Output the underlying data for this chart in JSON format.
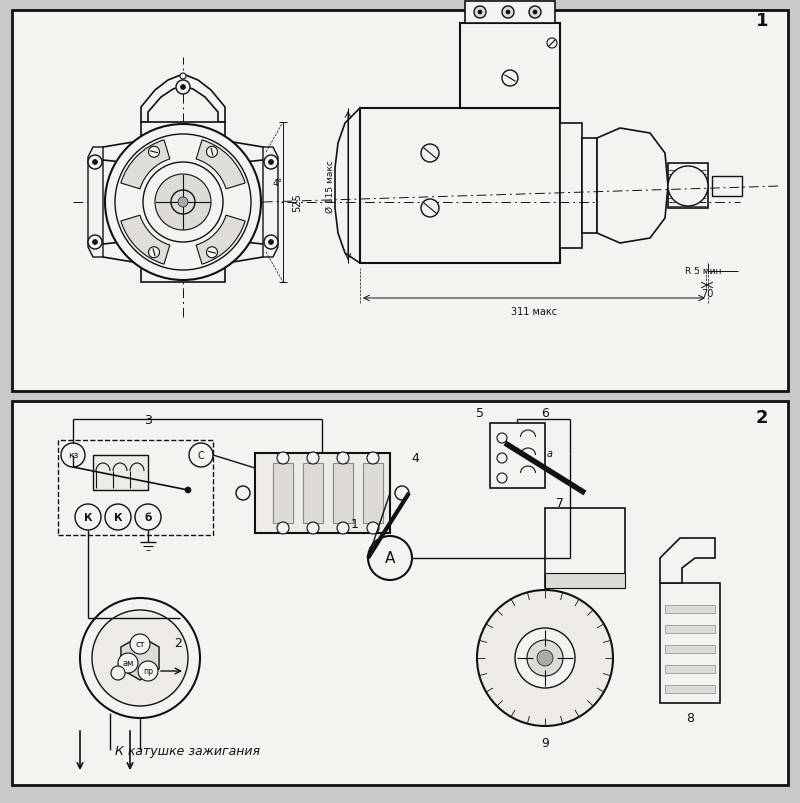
{
  "bg_color": "#c8c8c8",
  "panel_bg": "#f5f3f0",
  "lc": "#111111",
  "label1": "1",
  "label2": "2",
  "bottom_text": "К катушке зажигания",
  "dim_311": "311 макс",
  "dim_70": "70",
  "dim_r5": "R 5 мин",
  "dim_d115": "Ø 115 макс",
  "dim_525": "525",
  "dim_4": "4°",
  "label_3": "3",
  "label_4": "4",
  "label_5": "5",
  "label_6": "6",
  "label_7": "7",
  "label_8": "8",
  "label_9": "9",
  "label_1": "1",
  "label_2": "2",
  "label_kz": "кз",
  "label_k1": "К",
  "label_k2": "К",
  "label_b": "б",
  "label_c": "С",
  "label_st": "ст",
  "label_am": "ам",
  "label_pr": "пр",
  "label_a_circle": "A"
}
